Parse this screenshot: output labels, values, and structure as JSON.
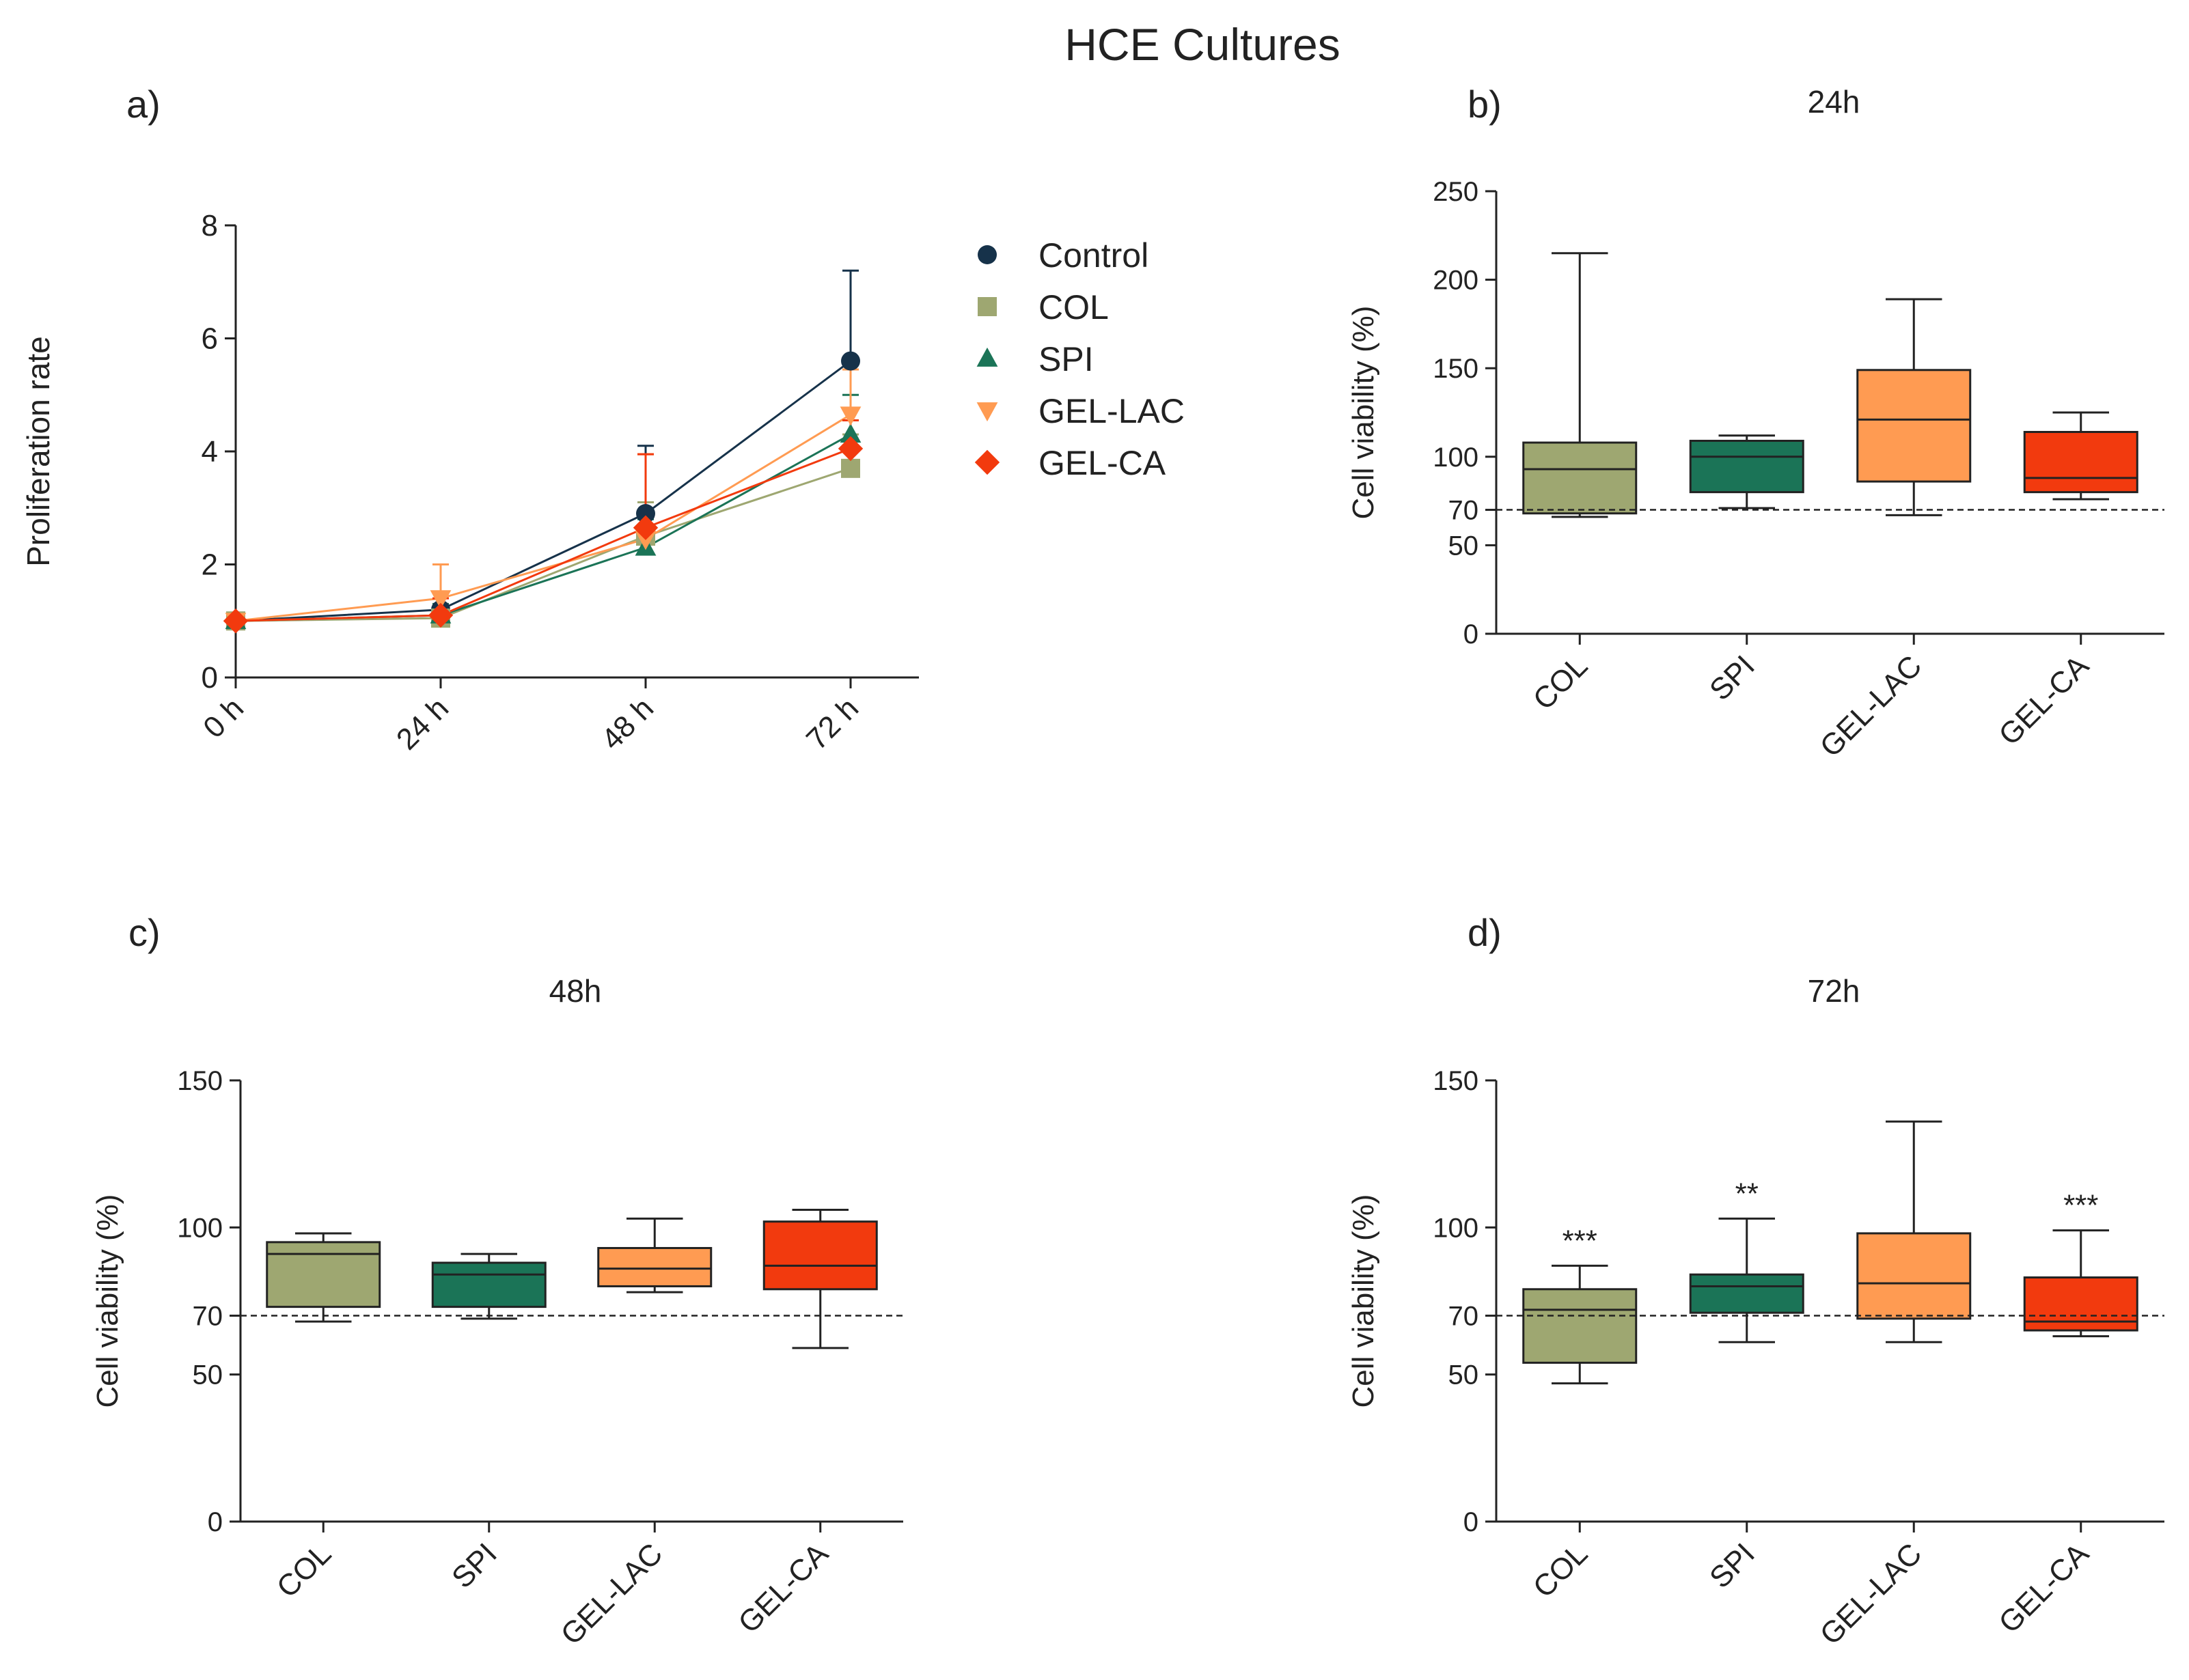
{
  "figure_title": "HCE Cultures",
  "colors": {
    "Control": "#16324a",
    "COL": "#9ea771",
    "SPI": "#1b7457",
    "GEL-LAC": "#ff9b52",
    "GEL-CA": "#f23a0e",
    "axis": "#222222"
  },
  "chart_data": [
    {
      "panel": "a)",
      "type": "line",
      "title": "",
      "xlabel": "",
      "ylabel": "Proliferation rate",
      "ylim": [
        0,
        8
      ],
      "yticks": [
        0,
        2,
        4,
        6,
        8
      ],
      "x": [
        "0 h",
        "24 h",
        "48 h",
        "72 h"
      ],
      "legend_position": "right",
      "series": [
        {
          "name": "Control",
          "marker": "circle",
          "values": [
            1.0,
            1.2,
            2.9,
            5.6
          ],
          "errors": [
            0,
            0.3,
            1.2,
            1.6
          ]
        },
        {
          "name": "COL",
          "marker": "square",
          "values": [
            1.0,
            1.05,
            2.5,
            3.7
          ],
          "errors": [
            0,
            0.2,
            0.6,
            0.6
          ]
        },
        {
          "name": "SPI",
          "marker": "triangle-up",
          "values": [
            1.0,
            1.1,
            2.3,
            4.3
          ],
          "errors": [
            0,
            0.2,
            0.5,
            0.7
          ]
        },
        {
          "name": "GEL-LAC",
          "marker": "triangle-down",
          "values": [
            1.0,
            1.4,
            2.45,
            4.65
          ],
          "errors": [
            0,
            0.6,
            1.5,
            0.8
          ]
        },
        {
          "name": "GEL-CA",
          "marker": "diamond",
          "values": [
            1.0,
            1.1,
            2.65,
            4.05
          ],
          "errors": [
            0,
            0.3,
            1.3,
            0.5
          ]
        }
      ]
    },
    {
      "panel": "b)",
      "type": "box",
      "title": "24h",
      "ylabel": "Cell viability (%)",
      "ylim": [
        0,
        250
      ],
      "yticks": [
        0,
        50,
        70,
        100,
        150,
        200,
        250
      ],
      "reference_line": 70,
      "categories": [
        "COL",
        "SPI",
        "GEL-LAC",
        "GEL-CA"
      ],
      "boxes": [
        {
          "min": 66,
          "q1": 68,
          "median": 93,
          "q3": 108,
          "max": 215,
          "annotation": ""
        },
        {
          "min": 71,
          "q1": 80,
          "median": 100,
          "q3": 109,
          "max": 112,
          "annotation": ""
        },
        {
          "min": 67,
          "q1": 86,
          "median": 121,
          "q3": 149,
          "max": 189,
          "annotation": ""
        },
        {
          "min": 76,
          "q1": 80,
          "median": 88,
          "q3": 114,
          "max": 125,
          "annotation": ""
        }
      ]
    },
    {
      "panel": "c)",
      "type": "box",
      "title": "48h",
      "ylabel": "Cell viability (%)",
      "ylim": [
        0,
        150
      ],
      "yticks": [
        0,
        50,
        70,
        100,
        150
      ],
      "reference_line": 70,
      "categories": [
        "COL",
        "SPI",
        "GEL-LAC",
        "GEL-CA"
      ],
      "boxes": [
        {
          "min": 68,
          "q1": 73,
          "median": 91,
          "q3": 95,
          "max": 98,
          "annotation": ""
        },
        {
          "min": 69,
          "q1": 73,
          "median": 84,
          "q3": 88,
          "max": 91,
          "annotation": ""
        },
        {
          "min": 78,
          "q1": 80,
          "median": 86,
          "q3": 93,
          "max": 103,
          "annotation": ""
        },
        {
          "min": 59,
          "q1": 79,
          "median": 87,
          "q3": 102,
          "max": 106,
          "annotation": ""
        }
      ]
    },
    {
      "panel": "d)",
      "type": "box",
      "title": "72h",
      "ylabel": "Cell viability (%)",
      "ylim": [
        0,
        150
      ],
      "yticks": [
        0,
        50,
        70,
        100,
        150
      ],
      "reference_line": 70,
      "categories": [
        "COL",
        "SPI",
        "GEL-LAC",
        "GEL-CA"
      ],
      "boxes": [
        {
          "min": 47,
          "q1": 54,
          "median": 72,
          "q3": 79,
          "max": 87,
          "annotation": "***"
        },
        {
          "min": 61,
          "q1": 71,
          "median": 80,
          "q3": 84,
          "max": 103,
          "annotation": "**"
        },
        {
          "min": 61,
          "q1": 69,
          "median": 81,
          "q3": 98,
          "max": 136,
          "annotation": ""
        },
        {
          "min": 63,
          "q1": 65,
          "median": 68,
          "q3": 83,
          "max": 99,
          "annotation": "***"
        }
      ]
    }
  ]
}
